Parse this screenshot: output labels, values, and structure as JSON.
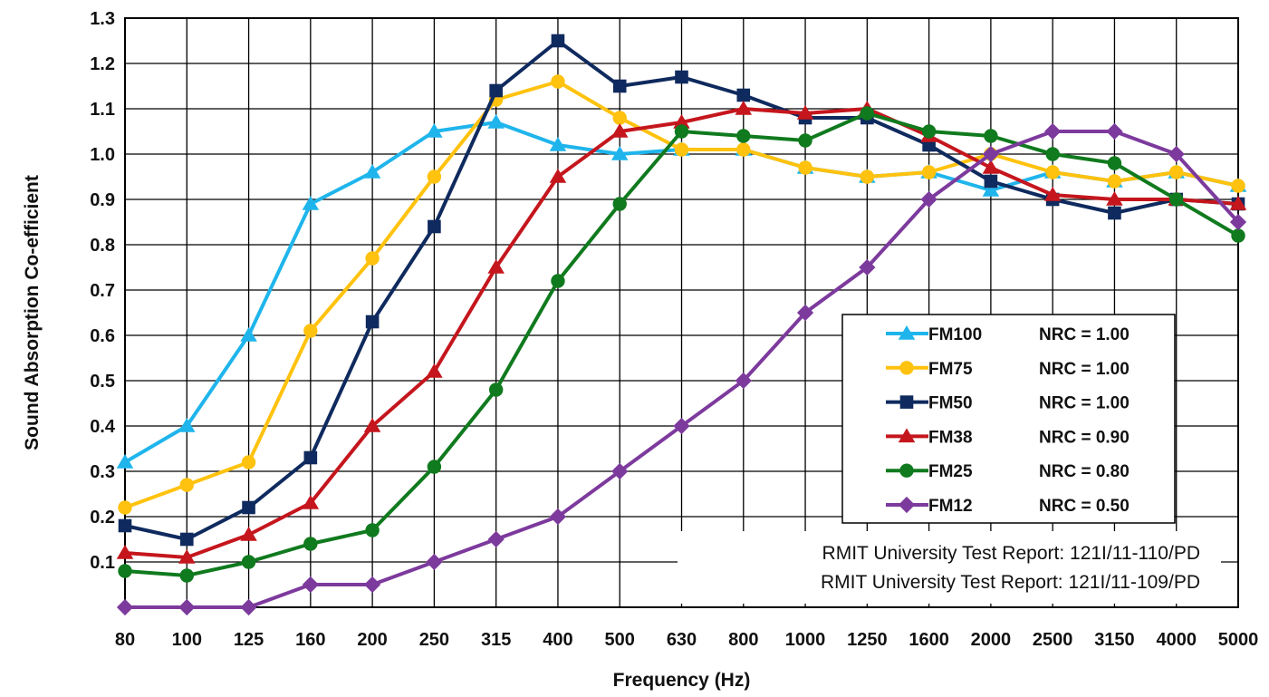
{
  "chart_data": {
    "type": "line",
    "title": "",
    "xlabel": "Frequency (Hz)",
    "ylabel": "Sound Absorption Co-efficient",
    "x_scale": "categorical",
    "categories": [
      "80",
      "100",
      "125",
      "160",
      "200",
      "250",
      "315",
      "400",
      "500",
      "630",
      "800",
      "1000",
      "1250",
      "1600",
      "2000",
      "2500",
      "3150",
      "4000",
      "5000"
    ],
    "ylim": [
      0.0,
      1.3
    ],
    "y_ticks": [
      "0.1",
      "0.2",
      "0.3",
      "0.4",
      "0.5",
      "0.6",
      "0.7",
      "0.8",
      "0.9",
      "1.0",
      "1.1",
      "1.2",
      "1.3"
    ],
    "grid": true,
    "legend_position": "lower-right",
    "series": [
      {
        "name": "FM100",
        "nrc": "NRC = 1.00",
        "color": "#1fb5ec",
        "marker": "triangle",
        "values": [
          0.32,
          0.4,
          0.6,
          0.89,
          0.96,
          1.05,
          1.07,
          1.02,
          1.0,
          1.01,
          1.01,
          0.97,
          0.95,
          0.96,
          0.92,
          0.96,
          0.94,
          0.96,
          0.93
        ]
      },
      {
        "name": "FM75",
        "nrc": "NRC = 1.00",
        "color": "#ffc20e",
        "marker": "circle",
        "values": [
          0.22,
          0.27,
          0.32,
          0.61,
          0.77,
          0.95,
          1.12,
          1.16,
          1.08,
          1.01,
          1.01,
          0.97,
          0.95,
          0.96,
          1.0,
          0.96,
          0.94,
          0.96,
          0.93
        ]
      },
      {
        "name": "FM50",
        "nrc": "NRC = 1.00",
        "color": "#0f2a5e",
        "marker": "square",
        "values": [
          0.18,
          0.15,
          0.22,
          0.33,
          0.63,
          0.84,
          1.14,
          1.25,
          1.15,
          1.17,
          1.13,
          1.08,
          1.08,
          1.02,
          0.94,
          0.9,
          0.87,
          0.9,
          0.89
        ]
      },
      {
        "name": "FM38",
        "nrc": "NRC = 0.90",
        "color": "#c5161d",
        "marker": "triangle",
        "values": [
          0.12,
          0.11,
          0.16,
          0.23,
          0.4,
          0.52,
          0.75,
          0.95,
          1.05,
          1.07,
          1.1,
          1.09,
          1.1,
          1.04,
          0.97,
          0.91,
          0.9,
          0.9,
          0.89
        ]
      },
      {
        "name": "FM25",
        "nrc": "NRC = 0.80",
        "color": "#107a1e",
        "marker": "circle",
        "values": [
          0.08,
          0.07,
          0.1,
          0.14,
          0.17,
          0.31,
          0.48,
          0.72,
          0.89,
          1.05,
          1.04,
          1.03,
          1.09,
          1.05,
          1.04,
          1.0,
          0.98,
          0.9,
          0.82
        ]
      },
      {
        "name": "FM12",
        "nrc": "NRC = 0.50",
        "color": "#7d3a9d",
        "marker": "diamond",
        "values": [
          0.0,
          0.0,
          0.0,
          0.05,
          0.05,
          0.1,
          0.15,
          0.2,
          0.3,
          0.4,
          0.5,
          0.65,
          0.75,
          0.9,
          1.0,
          1.05,
          1.05,
          1.0,
          0.85
        ]
      }
    ],
    "annotations": [
      "RMIT University Test Report:  121I/11-110/PD",
      "RMIT University Test Report:  121I/11-109/PD"
    ]
  }
}
